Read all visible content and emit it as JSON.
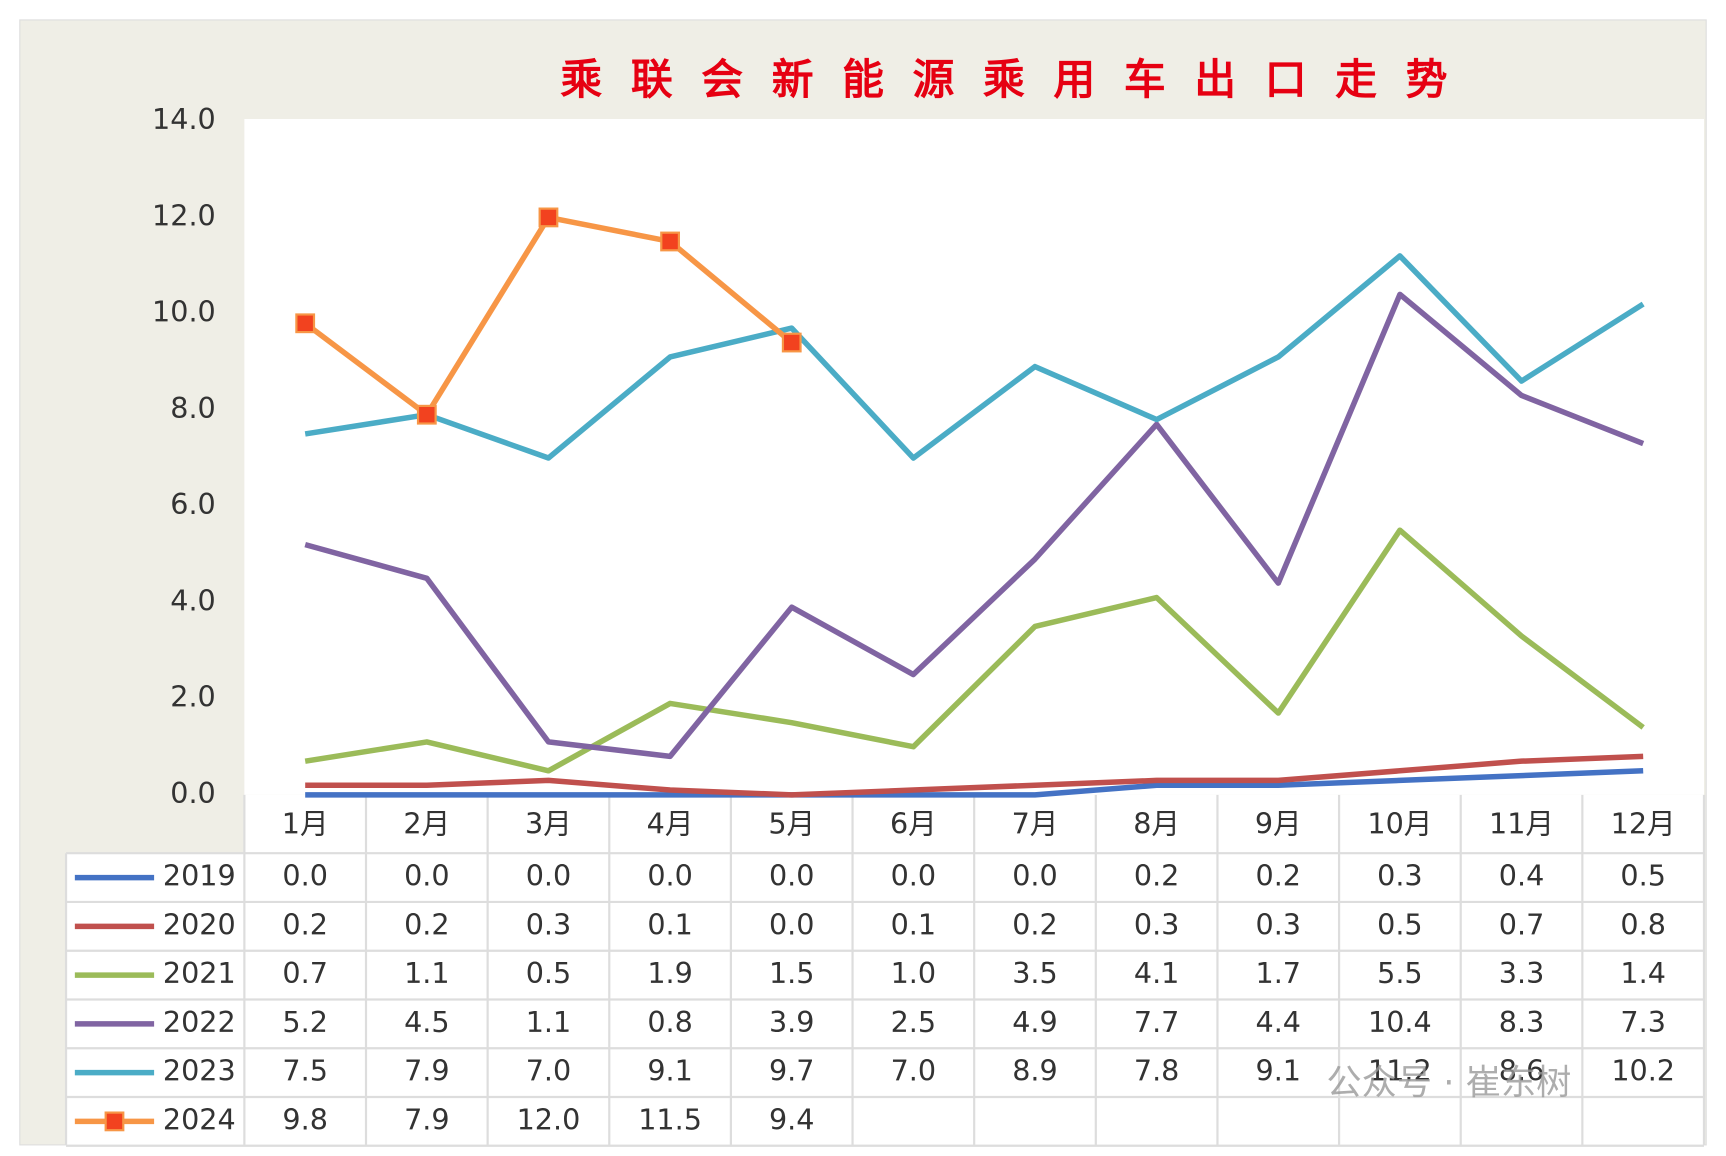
{
  "chart_data": {
    "type": "line",
    "title": "乘联会新能源乘用车出口走势",
    "categories": [
      "1月",
      "2月",
      "3月",
      "4月",
      "5月",
      "6月",
      "7月",
      "8月",
      "9月",
      "10月",
      "11月",
      "12月"
    ],
    "series": [
      {
        "name": "2019",
        "color": "#4472c4",
        "values": [
          0,
          0,
          0,
          0,
          0,
          0,
          0,
          0.2,
          0.2,
          0.3,
          0.4,
          0.5
        ],
        "value_labels": [
          "0.0",
          "0.0",
          "0.0",
          "0.0",
          "0.0",
          "0.0",
          "0.0",
          "0.2",
          "0.2",
          "0.3",
          "0.4",
          "0.5"
        ]
      },
      {
        "name": "2020",
        "color": "#c0504d",
        "values": [
          0.2,
          0.2,
          0.3,
          0.1,
          0,
          0.1,
          0.2,
          0.3,
          0.3,
          0.5,
          0.7,
          0.8
        ],
        "value_labels": [
          "0.2",
          "0.2",
          "0.3",
          "0.1",
          "0.0",
          "0.1",
          "0.2",
          "0.3",
          "0.3",
          "0.5",
          "0.7",
          "0.8"
        ]
      },
      {
        "name": "2021",
        "color": "#9bbb59",
        "values": [
          0.7,
          1.1,
          0.5,
          1.9,
          1.5,
          1,
          3.5,
          4.1,
          1.7,
          5.5,
          3.3,
          1.4
        ],
        "value_labels": [
          "0.7",
          "1.1",
          "0.5",
          "1.9",
          "1.5",
          "1.0",
          "3.5",
          "4.1",
          "1.7",
          "5.5",
          "3.3",
          "1.4"
        ]
      },
      {
        "name": "2022",
        "color": "#8064a2",
        "values": [
          5.2,
          4.5,
          1.1,
          0.8,
          3.9,
          2.5,
          4.9,
          7.7,
          4.4,
          10.4,
          8.3,
          7.3
        ],
        "value_labels": [
          "5.2",
          "4.5",
          "1.1",
          "0.8",
          "3.9",
          "2.5",
          "4.9",
          "7.7",
          "4.4",
          "10.4",
          "8.3",
          "7.3"
        ]
      },
      {
        "name": "2023",
        "color": "#4bacc6",
        "values": [
          7.5,
          7.9,
          7,
          9.1,
          9.7,
          7,
          8.9,
          7.8,
          9.1,
          11.2,
          8.6,
          10.2
        ],
        "value_labels": [
          "7.5",
          "7.9",
          "7.0",
          "9.1",
          "9.7",
          "7.0",
          "8.9",
          "7.8",
          "9.1",
          "11.2",
          "8.6",
          "10.2"
        ]
      },
      {
        "name": "2024",
        "color": "#f79646",
        "marker": "square",
        "marker_color": "#f2421f",
        "values": [
          9.8,
          7.9,
          12,
          11.5,
          9.4,
          null,
          null,
          null,
          null,
          null,
          null,
          null
        ],
        "value_labels": [
          "9.8",
          "7.9",
          "12.0",
          "11.5",
          "9.4",
          null,
          null,
          null,
          null,
          null,
          null,
          null
        ]
      }
    ],
    "ylim": [
      0,
      14
    ],
    "yticks": [
      {
        "value": 0,
        "label": "0.0"
      },
      {
        "value": 2,
        "label": "2.0"
      },
      {
        "value": 4,
        "label": "4.0"
      },
      {
        "value": 6,
        "label": "6.0"
      },
      {
        "value": 8,
        "label": "8.0"
      },
      {
        "value": 10,
        "label": "10.0"
      },
      {
        "value": 12,
        "label": "12.0"
      },
      {
        "value": 14,
        "label": "14.0"
      }
    ],
    "grid": false,
    "watermark": "公众号 · 崔东树"
  }
}
